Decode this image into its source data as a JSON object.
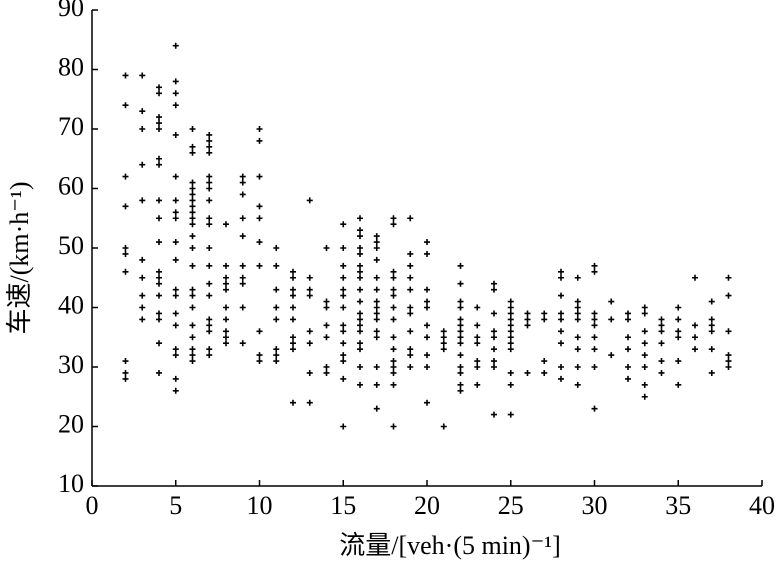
{
  "chart_data": {
    "type": "scatter",
    "x_label": "流量/[veh·(5 min)⁻¹]",
    "y_label": "车速/(km·h⁻¹)",
    "color": "#000000",
    "marker": "plus",
    "xlim": [
      0,
      40
    ],
    "xticks": [
      0,
      5,
      10,
      15,
      20,
      25,
      30,
      35,
      40
    ],
    "ylim": [
      10,
      90
    ],
    "yticks": [
      10,
      20,
      30,
      40,
      50,
      60,
      70,
      80,
      90
    ],
    "x": [
      2,
      2,
      2,
      2,
      2,
      2,
      2,
      2,
      2,
      2,
      3,
      3,
      3,
      3,
      3,
      3,
      3,
      3,
      3,
      3,
      4,
      4,
      4,
      4,
      4,
      4,
      4,
      4,
      4,
      4,
      4,
      4,
      4,
      4,
      4,
      4,
      4,
      4,
      5,
      5,
      5,
      5,
      5,
      5,
      5,
      5,
      5,
      5,
      5,
      5,
      5,
      5,
      5,
      5,
      5,
      5,
      5,
      6,
      6,
      6,
      6,
      6,
      6,
      6,
      6,
      6,
      6,
      6,
      6,
      6,
      6,
      6,
      6,
      6,
      6,
      6,
      6,
      6,
      6,
      7,
      7,
      7,
      7,
      7,
      7,
      7,
      7,
      7,
      7,
      7,
      7,
      7,
      7,
      7,
      7,
      7,
      7,
      7,
      8,
      8,
      8,
      8,
      8,
      8,
      8,
      8,
      8,
      8,
      9,
      9,
      9,
      9,
      9,
      9,
      9,
      9,
      9,
      9,
      10,
      10,
      10,
      10,
      10,
      10,
      10,
      10,
      10,
      10,
      11,
      11,
      11,
      11,
      11,
      11,
      11,
      11,
      12,
      12,
      12,
      12,
      12,
      12,
      12,
      12,
      12,
      12,
      13,
      13,
      13,
      13,
      13,
      13,
      13,
      13,
      14,
      14,
      14,
      14,
      14,
      14,
      14,
      15,
      15,
      15,
      15,
      15,
      15,
      15,
      15,
      15,
      15,
      15,
      15,
      15,
      15,
      16,
      16,
      16,
      16,
      16,
      16,
      16,
      16,
      16,
      16,
      16,
      16,
      16,
      16,
      16,
      16,
      16,
      16,
      17,
      17,
      17,
      17,
      17,
      17,
      17,
      17,
      17,
      17,
      17,
      17,
      17,
      17,
      17,
      18,
      18,
      18,
      18,
      18,
      18,
      18,
      18,
      18,
      18,
      18,
      18,
      18,
      18,
      18,
      19,
      19,
      19,
      19,
      19,
      19,
      19,
      19,
      19,
      19,
      19,
      20,
      20,
      20,
      20,
      20,
      20,
      20,
      20,
      20,
      20,
      21,
      21,
      21,
      21,
      21,
      22,
      22,
      22,
      22,
      22,
      22,
      22,
      22,
      22,
      22,
      22,
      22,
      22,
      22,
      23,
      23,
      23,
      23,
      23,
      23,
      23,
      24,
      24,
      24,
      24,
      24,
      24,
      24,
      24,
      24,
      25,
      25,
      25,
      25,
      25,
      25,
      25,
      25,
      25,
      25,
      25,
      25,
      26,
      26,
      26,
      26,
      27,
      27,
      27,
      27,
      28,
      28,
      28,
      28,
      28,
      28,
      28,
      28,
      28,
      29,
      29,
      29,
      29,
      29,
      29,
      29,
      29,
      29,
      30,
      30,
      30,
      30,
      30,
      30,
      30,
      30,
      30,
      31,
      31,
      31,
      32,
      32,
      32,
      32,
      32,
      32,
      33,
      33,
      33,
      33,
      33,
      33,
      33,
      33,
      34,
      34,
      34,
      34,
      34,
      34,
      35,
      35,
      35,
      35,
      35,
      35,
      36,
      36,
      36,
      36,
      37,
      37,
      37,
      37,
      37,
      37,
      38,
      38,
      38,
      38,
      38,
      38
    ],
    "values": [
      79,
      74,
      62,
      57,
      50,
      49,
      46,
      31,
      29,
      28,
      79,
      73,
      70,
      64,
      58,
      48,
      45,
      42,
      40,
      38,
      77,
      76,
      72,
      71,
      70,
      65,
      64,
      58,
      55,
      51,
      46,
      45,
      44,
      42,
      39,
      38,
      34,
      29,
      84,
      78,
      76,
      74,
      69,
      62,
      58,
      56,
      55,
      51,
      48,
      43,
      42,
      39,
      37,
      33,
      32,
      28,
      26,
      70,
      67,
      66,
      61,
      60,
      59,
      58,
      57,
      56,
      55,
      54,
      52,
      50,
      47,
      43,
      42,
      40,
      37,
      35,
      33,
      32,
      31,
      69,
      68,
      67,
      66,
      62,
      61,
      60,
      58,
      55,
      54,
      50,
      47,
      44,
      42,
      38,
      37,
      36,
      33,
      32,
      54,
      47,
      45,
      44,
      43,
      40,
      38,
      36,
      35,
      34,
      62,
      61,
      59,
      55,
      52,
      47,
      45,
      44,
      40,
      34,
      70,
      68,
      62,
      57,
      55,
      51,
      47,
      36,
      32,
      31,
      50,
      47,
      43,
      40,
      38,
      33,
      32,
      31,
      46,
      45,
      43,
      42,
      40,
      38,
      35,
      34,
      33,
      24,
      58,
      45,
      43,
      42,
      36,
      34,
      29,
      24,
      50,
      41,
      40,
      37,
      35,
      30,
      29,
      54,
      50,
      47,
      45,
      43,
      42,
      40,
      37,
      36,
      34,
      32,
      31,
      28,
      20,
      55,
      53,
      52,
      50,
      49,
      47,
      46,
      45,
      43,
      41,
      39,
      38,
      37,
      36,
      34,
      33,
      30,
      27,
      52,
      51,
      50,
      48,
      45,
      43,
      41,
      40,
      39,
      38,
      36,
      35,
      30,
      27,
      23,
      55,
      54,
      46,
      45,
      43,
      42,
      40,
      38,
      35,
      33,
      31,
      30,
      29,
      27,
      20,
      55,
      49,
      47,
      45,
      43,
      40,
      39,
      36,
      33,
      32,
      30,
      51,
      49,
      43,
      41,
      40,
      37,
      35,
      32,
      30,
      24,
      36,
      35,
      34,
      33,
      20,
      47,
      44,
      41,
      40,
      38,
      37,
      36,
      35,
      34,
      32,
      30,
      29,
      27,
      26,
      40,
      37,
      35,
      34,
      31,
      30,
      27,
      44,
      43,
      39,
      36,
      35,
      33,
      31,
      30,
      22,
      41,
      40,
      39,
      38,
      37,
      36,
      35,
      34,
      33,
      29,
      27,
      22,
      39,
      38,
      37,
      29,
      39,
      38,
      31,
      29,
      46,
      45,
      42,
      39,
      38,
      36,
      34,
      30,
      28,
      45,
      41,
      40,
      39,
      38,
      35,
      33,
      30,
      27,
      47,
      46,
      39,
      38,
      37,
      35,
      33,
      30,
      23,
      41,
      38,
      32,
      39,
      38,
      35,
      33,
      30,
      28,
      40,
      39,
      36,
      34,
      32,
      30,
      27,
      25,
      38,
      37,
      36,
      34,
      31,
      29,
      40,
      38,
      36,
      35,
      31,
      27,
      45,
      37,
      35,
      33,
      41,
      38,
      37,
      36,
      33,
      29,
      45,
      42,
      36,
      32,
      31,
      30
    ]
  }
}
